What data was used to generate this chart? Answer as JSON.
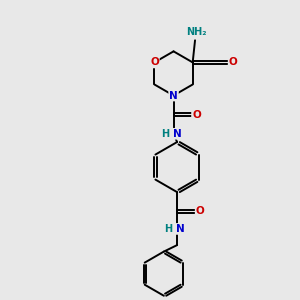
{
  "bg_color": "#e8e8e8",
  "C_color": "#000000",
  "N_color": "#0000cd",
  "O_color": "#cc0000",
  "NH2_color": "#008080",
  "bond_color": "#000000",
  "bond_lw": 1.4,
  "font_size": 7.5,
  "fig_w": 3.0,
  "fig_h": 3.0,
  "xlim": [
    0,
    10
  ],
  "ylim": [
    0,
    10
  ]
}
